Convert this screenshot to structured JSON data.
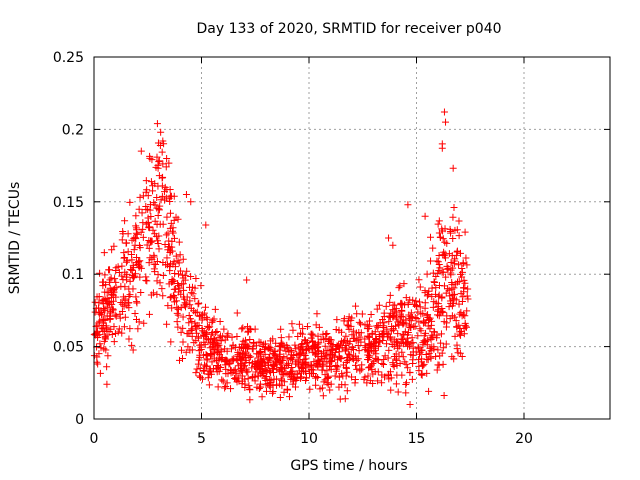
{
  "chart_data": {
    "type": "scatter",
    "title": "Day 133 of 2020, SRMTID for receiver p040",
    "xlabel": "GPS time / hours",
    "ylabel": "SRMTID / TECUs",
    "xlim": [
      0,
      24
    ],
    "ylim": [
      0,
      0.25
    ],
    "xticks": [
      0,
      5,
      10,
      15,
      20
    ],
    "xtick_labels": [
      "0",
      "5",
      "10",
      "15",
      "20"
    ],
    "yticks": [
      0,
      0.05,
      0.1,
      0.15,
      0.2,
      0.25
    ],
    "ytick_labels": [
      "0",
      "0.05",
      "0.1",
      "0.15",
      "0.2",
      "0.25"
    ],
    "grid": true,
    "marker": "+",
    "series_color": "#ff0000",
    "series": [
      {
        "name": "SRMTID p040",
        "trend": [
          [
            0.0,
            0.06,
            0.015
          ],
          [
            0.5,
            0.072,
            0.018
          ],
          [
            1.0,
            0.088,
            0.018
          ],
          [
            1.5,
            0.092,
            0.018
          ],
          [
            2.0,
            0.105,
            0.022
          ],
          [
            2.5,
            0.125,
            0.03
          ],
          [
            3.0,
            0.14,
            0.035
          ],
          [
            3.3,
            0.135,
            0.035
          ],
          [
            3.7,
            0.1,
            0.025
          ],
          [
            4.0,
            0.085,
            0.022
          ],
          [
            4.5,
            0.07,
            0.018
          ],
          [
            5.0,
            0.058,
            0.015
          ],
          [
            5.5,
            0.048,
            0.012
          ],
          [
            6.0,
            0.042,
            0.01
          ],
          [
            7.0,
            0.042,
            0.012
          ],
          [
            8.0,
            0.038,
            0.01
          ],
          [
            9.0,
            0.038,
            0.01
          ],
          [
            10.0,
            0.042,
            0.01
          ],
          [
            11.0,
            0.046,
            0.012
          ],
          [
            12.0,
            0.048,
            0.012
          ],
          [
            13.0,
            0.052,
            0.014
          ],
          [
            14.0,
            0.058,
            0.016
          ],
          [
            15.0,
            0.06,
            0.016
          ],
          [
            15.5,
            0.065,
            0.018
          ],
          [
            16.0,
            0.085,
            0.03
          ],
          [
            16.5,
            0.095,
            0.03
          ],
          [
            17.0,
            0.09,
            0.025
          ],
          [
            17.4,
            0.085,
            0.02
          ]
        ],
        "peaks": [
          [
            2.95,
            0.204
          ],
          [
            3.1,
            0.198
          ],
          [
            3.2,
            0.192
          ],
          [
            2.6,
            0.18
          ],
          [
            2.2,
            0.185
          ],
          [
            16.2,
            0.19
          ],
          [
            16.3,
            0.212
          ],
          [
            16.35,
            0.205
          ],
          [
            16.2,
            0.187
          ],
          [
            14.6,
            0.148
          ],
          [
            5.2,
            0.134
          ],
          [
            4.3,
            0.155
          ],
          [
            4.5,
            0.15
          ],
          [
            7.1,
            0.096
          ],
          [
            13.7,
            0.125
          ],
          [
            13.9,
            0.12
          ],
          [
            15.4,
            0.14
          ],
          [
            0.6,
            0.024
          ],
          [
            14.7,
            0.01
          ],
          [
            14.5,
            0.018
          ],
          [
            8.2,
            0.022
          ],
          [
            9.0,
            0.02
          ]
        ],
        "count": 1700,
        "x_range": [
          0.0,
          17.4
        ]
      }
    ]
  }
}
